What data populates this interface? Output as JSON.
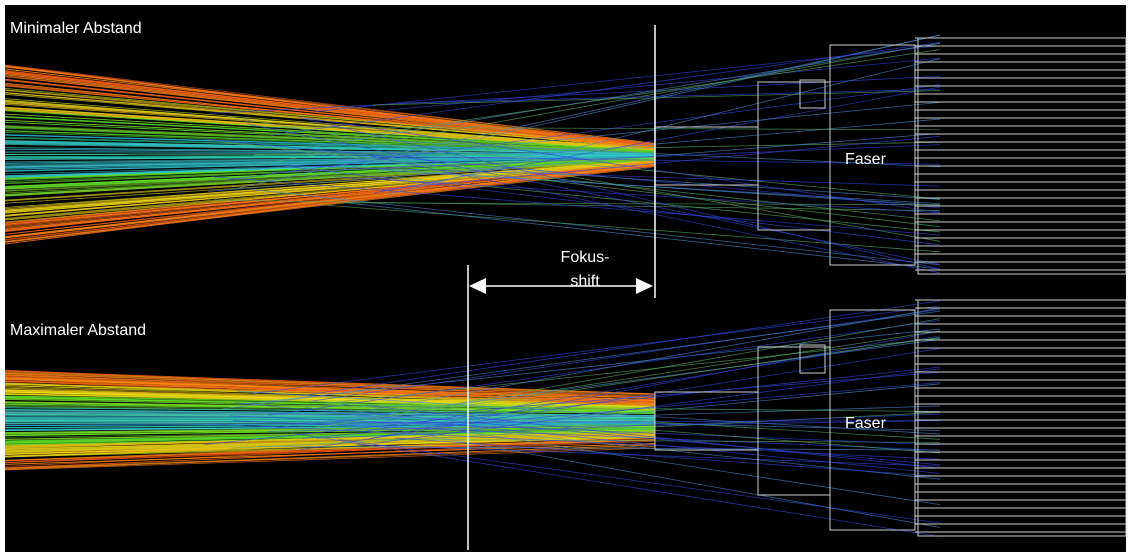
{
  "panels": [
    {
      "label": "Minimaler Abstand",
      "fiber_label": "Faser"
    },
    {
      "label": "Maximaler Abstand",
      "fiber_label": "Faser"
    }
  ],
  "annotation": {
    "lines": [
      "Fokus-",
      "shift"
    ]
  }
}
